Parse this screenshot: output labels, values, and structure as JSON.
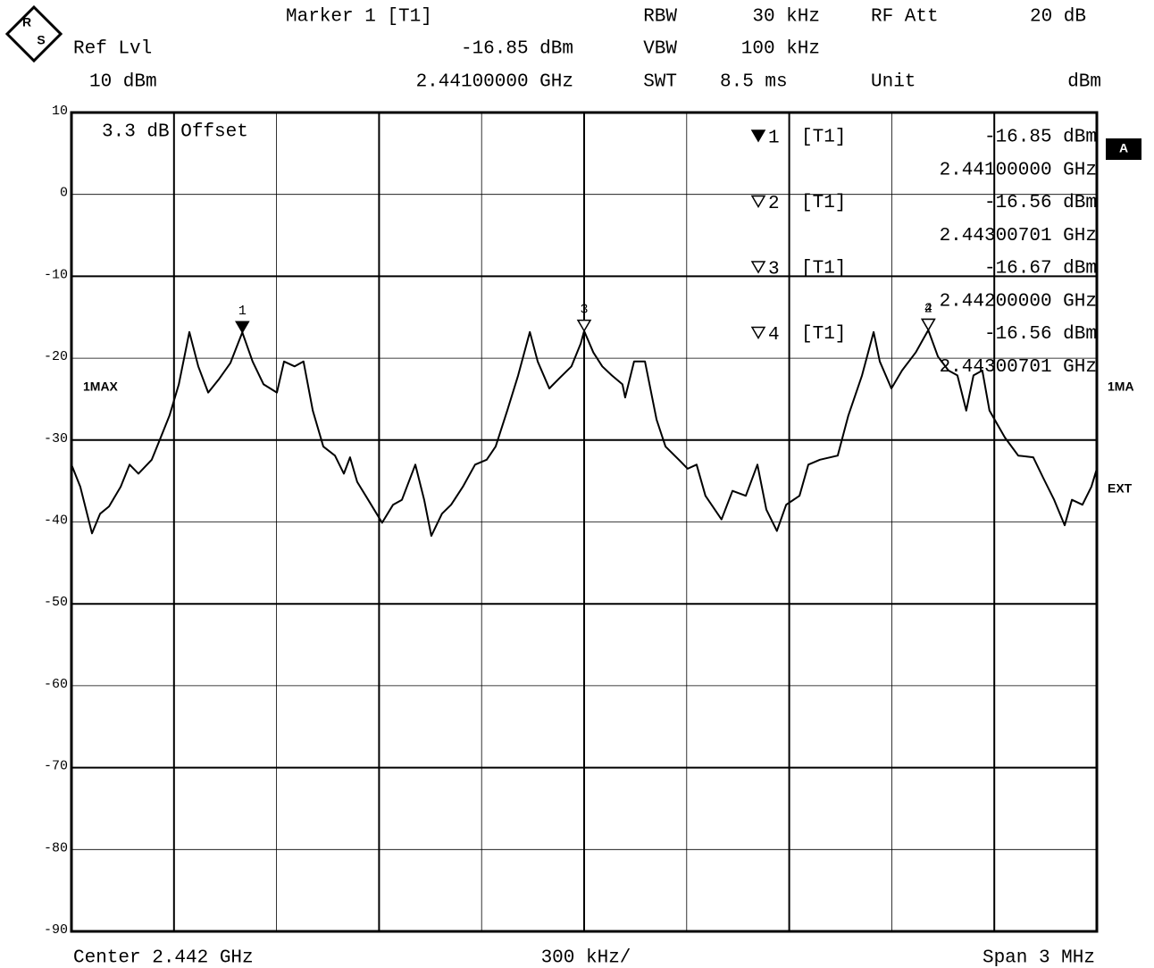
{
  "header": {
    "marker": "Marker 1 [T1]",
    "ref_lvl_label": "Ref Lvl",
    "marker_level": "-16.85 dBm",
    "ref_lvl": "10 dBm",
    "marker_freq": "2.44100000 GHz",
    "rbw_label": "RBW",
    "rbw": "30 kHz",
    "vbw_label": "VBW",
    "vbw": "100 kHz",
    "swt_label": "SWT",
    "swt": "8.5 ms",
    "rf_att_label": "RF Att",
    "rf_att": "20 dB",
    "unit_label": "Unit",
    "unit": "dBm"
  },
  "logo": [
    "R",
    "S"
  ],
  "chart_data": {
    "type": "line",
    "x": [
      2440.5,
      2440.526,
      2440.56,
      2440.584,
      2440.61,
      2440.644,
      2440.67,
      2440.696,
      2440.735,
      2440.761,
      2440.787,
      2440.814,
      2440.845,
      2440.871,
      2440.9,
      2440.931,
      2440.965,
      2441.0,
      2441.03,
      2441.062,
      2441.101,
      2441.122,
      2441.153,
      2441.179,
      2441.206,
      2441.237,
      2441.271,
      2441.297,
      2441.315,
      2441.336,
      2441.368,
      2441.409,
      2441.441,
      2441.467,
      2441.506,
      2441.532,
      2441.553,
      2441.584,
      2441.611,
      2441.645,
      2441.681,
      2441.715,
      2441.741,
      2441.775,
      2441.807,
      2441.841,
      2441.864,
      2441.898,
      2441.924,
      2441.963,
      2441.99,
      2442.0,
      2442.027,
      2442.053,
      2442.081,
      2442.112,
      2442.12,
      2442.146,
      2442.178,
      2442.212,
      2442.238,
      2442.277,
      2442.303,
      2442.329,
      2442.355,
      2442.402,
      2442.434,
      2442.473,
      2442.507,
      2442.533,
      2442.564,
      2442.591,
      2442.63,
      2442.656,
      2442.69,
      2442.742,
      2442.773,
      2442.813,
      2442.847,
      2442.865,
      2442.899,
      2442.93,
      2442.97,
      2443.007,
      2443.035,
      2443.066,
      2443.092,
      2443.118,
      2443.139,
      2443.165,
      2443.186,
      2443.231,
      2443.27,
      2443.314,
      2443.343,
      2443.375,
      2443.406,
      2443.427,
      2443.458,
      2443.484,
      2443.5
    ],
    "series": [
      {
        "name": "1MAX",
        "color": "#000000",
        "values": [
          -33.0,
          -35.7,
          -41.4,
          -39.0,
          -38.1,
          -35.7,
          -33.0,
          -34.1,
          -32.4,
          -29.7,
          -27.0,
          -23.2,
          -16.8,
          -21.0,
          -24.2,
          -22.6,
          -20.6,
          -16.85,
          -20.4,
          -23.2,
          -24.2,
          -20.4,
          -21.0,
          -20.4,
          -26.4,
          -30.8,
          -31.9,
          -34.1,
          -32.1,
          -35.1,
          -37.3,
          -40.1,
          -37.9,
          -37.3,
          -33.0,
          -37.3,
          -41.7,
          -39.0,
          -37.9,
          -35.7,
          -33.0,
          -32.4,
          -30.8,
          -26.4,
          -22.1,
          -16.8,
          -20.4,
          -23.7,
          -22.6,
          -21.0,
          -18.2,
          -16.67,
          -19.3,
          -21.0,
          -22.1,
          -23.2,
          -24.8,
          -20.4,
          -20.4,
          -27.5,
          -30.8,
          -32.4,
          -33.5,
          -33.0,
          -36.8,
          -39.7,
          -36.2,
          -36.8,
          -33.0,
          -38.5,
          -41.1,
          -37.9,
          -36.8,
          -33.0,
          -32.4,
          -31.9,
          -27.0,
          -22.1,
          -16.8,
          -20.4,
          -23.7,
          -21.5,
          -19.3,
          -16.56,
          -19.8,
          -21.5,
          -22.1,
          -26.4,
          -22.1,
          -21.5,
          -26.4,
          -29.7,
          -31.9,
          -32.1,
          -34.6,
          -37.3,
          -40.4,
          -37.3,
          -37.9,
          -35.7,
          -33.5
        ]
      }
    ],
    "xlim": [
      2440.5,
      2443.5
    ],
    "xticks": [
      2440.5,
      2440.8,
      2441.1,
      2441.4,
      2441.7,
      2442.0,
      2442.3,
      2442.6,
      2442.9,
      2443.2,
      2443.5
    ],
    "ylim": [
      -90,
      10
    ],
    "yticks": [
      10,
      0,
      -10,
      -20,
      -30,
      -40,
      -50,
      -60,
      -70,
      -80,
      -90
    ],
    "grid": true,
    "offset_note": "3.3 dB Offset",
    "markers": [
      {
        "symbol": "filled",
        "name": "1",
        "trace": "[T1]",
        "x": 2441.0,
        "value": -16.85,
        "value_label": "-16.85 dBm",
        "x_label": "2.44100000 GHz"
      },
      {
        "symbol": "open",
        "name": "2",
        "trace": "[T1]",
        "x": 2443.00701,
        "value": -16.56,
        "value_label": "-16.56 dBm",
        "x_label": "2.44300701 GHz"
      },
      {
        "symbol": "open",
        "name": "3",
        "trace": "[T1]",
        "x": 2442.0,
        "value": -16.67,
        "value_label": "-16.67 dBm",
        "x_label": "2.44200000 GHz"
      },
      {
        "symbol": "open",
        "name": "4",
        "trace": "[T1]",
        "x": 2443.00701,
        "value": -16.56,
        "value_label": "-16.56 dBm",
        "x_label": "2.44300701 GHz"
      }
    ],
    "side_labels": {
      "trace": "1MA",
      "ext": "EXT",
      "screen": "A"
    },
    "footer": {
      "center": "Center 2.442 GHz",
      "div": "300 kHz/",
      "span": "Span 3 MHz"
    }
  }
}
